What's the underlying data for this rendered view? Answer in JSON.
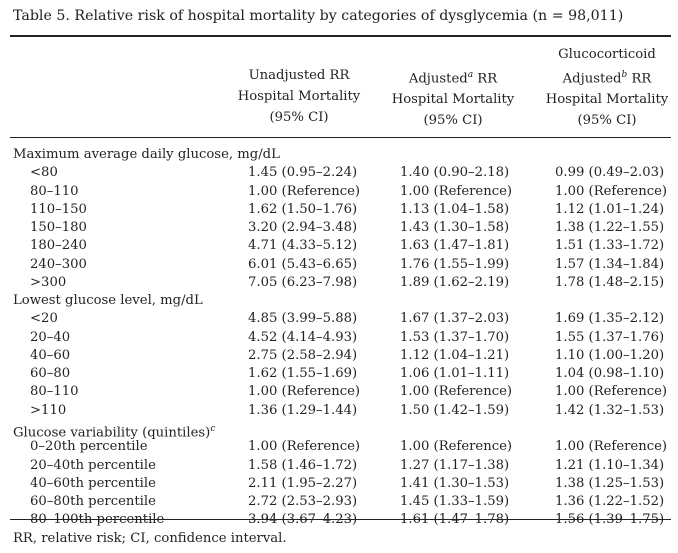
{
  "title": "Table 5.  Relative risk of hospital mortality by categories of dysglycemia (n = 98,011)",
  "columns": [
    {
      "lines": [
        "Unadjusted RR",
        "Hospital Mortality",
        "(95% CI)"
      ],
      "sup": ""
    },
    {
      "lines": [
        "Adjusted RR",
        "Hospital Mortality",
        "(95% CI)"
      ],
      "sup": "a"
    },
    {
      "lines": [
        "Glucocorticoid",
        "Adjusted RR",
        "Hospital Mortality",
        "(95% CI)"
      ],
      "sup": "b"
    }
  ],
  "col_head_text": {
    "c1_l1": "Unadjusted RR",
    "c1_l2": "Hospital Mortality",
    "c1_l3": "(95% CI)",
    "c2_l1a": "Adjusted",
    "c2_sup": "a",
    "c2_l1b": " RR",
    "c2_l2": "Hospital Mortality",
    "c2_l3": "(95% CI)",
    "c3_l1": "Glucocorticoid",
    "c3_l2a": "Adjusted",
    "c3_sup": "b",
    "c3_l2b": " RR",
    "c3_l3": "Hospital Mortality",
    "c3_l4": "(95% CI)"
  },
  "sections": [
    {
      "heading": "Maximum average daily glucose, mg/dL",
      "heading_sup": "",
      "rows": [
        {
          "label": "<80",
          "c1": "1.45 (0.95–2.24)",
          "c2": "1.40 (0.90–2.18)",
          "c3": "0.99 (0.49–2.03)"
        },
        {
          "label": "80–110",
          "c1": "1.00 (Reference)",
          "c2": "1.00 (Reference)",
          "c3": "1.00 (Reference)"
        },
        {
          "label": "110–150",
          "c1": "1.62 (1.50–1.76)",
          "c2": "1.13 (1.04–1.58)",
          "c3": "1.12 (1.01–1.24)"
        },
        {
          "label": "150–180",
          "c1": "3.20 (2.94–3.48)",
          "c2": "1.43 (1.30–1.58)",
          "c3": "1.38 (1.22–1.55)"
        },
        {
          "label": "180–240",
          "c1": "4.71 (4.33–5.12)",
          "c2": "1.63 (1.47–1.81)",
          "c3": "1.51 (1.33–1.72)"
        },
        {
          "label": "240–300",
          "c1": "6.01 (5.43–6.65)",
          "c2": "1.76 (1.55–1.99)",
          "c3": "1.57 (1.34–1.84)"
        },
        {
          "label": ">300",
          "c1": "7.05 (6.23–7.98)",
          "c2": "1.89 (1.62–2.19)",
          "c3": "1.78 (1.48–2.15)"
        }
      ]
    },
    {
      "heading": "Lowest glucose level, mg/dL",
      "heading_sup": "",
      "rows": [
        {
          "label": "<20",
          "c1": "4.85 (3.99–5.88)",
          "c2": "1.67 (1.37–2.03)",
          "c3": "1.69 (1.35–2.12)"
        },
        {
          "label": "20–40",
          "c1": "4.52 (4.14–4.93)",
          "c2": "1.53 (1.37–1.70)",
          "c3": "1.55 (1.37–1.76)"
        },
        {
          "label": "40–60",
          "c1": "2.75 (2.58–2.94)",
          "c2": "1.12 (1.04–1.21)",
          "c3": "1.10 (1.00–1.20)"
        },
        {
          "label": "60–80",
          "c1": "1.62 (1.55–1.69)",
          "c2": "1.06 (1.01–1.11)",
          "c3": "1.04 (0.98–1.10)"
        },
        {
          "label": "80–110",
          "c1": "1.00 (Reference)",
          "c2": "1.00 (Reference)",
          "c3": "1.00 (Reference)"
        },
        {
          "label": ">110",
          "c1": "1.36 (1.29–1.44)",
          "c2": "1.50 (1.42–1.59)",
          "c3": "1.42 (1.32–1.53)"
        }
      ]
    },
    {
      "heading": "Glucose variability (quintiles)",
      "heading_sup": "c",
      "rows": [
        {
          "label": "0–20th percentile",
          "c1": "1.00 (Reference)",
          "c2": "1.00 (Reference)",
          "c3": "1.00 (Reference)"
        },
        {
          "label": "20–40th percentile",
          "c1": "1.58 (1.46–1.72)",
          "c2": "1.27 (1.17–1.38)",
          "c3": "1.21 (1.10–1.34)"
        },
        {
          "label": "40–60th percentile",
          "c1": "2.11 (1.95–2.27)",
          "c2": "1.41 (1.30–1.53)",
          "c3": "1.38 (1.25–1.53)"
        },
        {
          "label": "60–80th percentile",
          "c1": "2.72 (2.53–2.93)",
          "c2": "1.45 (1.33–1.59)",
          "c3": "1.36 (1.22–1.52)"
        },
        {
          "label": "80–100th percentile",
          "c1": "3.94 (3.67–4.23)",
          "c2": "1.61 (1.47–1.78)",
          "c3": "1.56 (1.39–1.75)"
        }
      ]
    }
  ],
  "footnote": "RR, relative risk; CI, confidence interval."
}
